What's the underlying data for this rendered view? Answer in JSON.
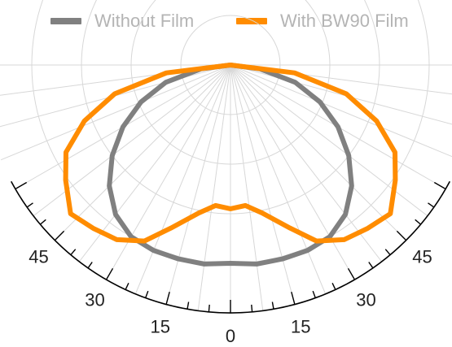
{
  "chart_data": {
    "type": "line",
    "subtype": "polar-light-distribution",
    "title": "",
    "angle_unit": "degrees",
    "angular_range": [
      -60,
      60
    ],
    "radial_range": [
      0,
      1
    ],
    "grid": true,
    "legend": {
      "placement": "top",
      "entries": [
        {
          "name": "Without Film",
          "color": "#808080"
        },
        {
          "name": "With BW90 Film",
          "color": "#ff8c00"
        }
      ]
    },
    "tick_labels": [
      {
        "angle": -45,
        "text": "45"
      },
      {
        "angle": -30,
        "text": "30"
      },
      {
        "angle": -15,
        "text": "15"
      },
      {
        "angle": 0,
        "text": "0"
      },
      {
        "angle": 15,
        "text": "15"
      },
      {
        "angle": 30,
        "text": "30"
      },
      {
        "angle": 45,
        "text": "45"
      }
    ],
    "series": [
      {
        "name": "Without Film",
        "color": "#808080",
        "points": [
          {
            "angle": 0,
            "r": 0.8
          },
          {
            "angle": 7.5,
            "r": 0.81
          },
          {
            "angle": 15,
            "r": 0.81
          },
          {
            "angle": 22.5,
            "r": 0.81
          },
          {
            "angle": 30,
            "r": 0.8
          },
          {
            "angle": 37.5,
            "r": 0.76
          },
          {
            "angle": 45,
            "r": 0.69
          },
          {
            "angle": 52.5,
            "r": 0.6
          },
          {
            "angle": 60,
            "r": 0.5
          },
          {
            "angle": 67.5,
            "r": 0.39
          },
          {
            "angle": 75,
            "r": 0.27
          },
          {
            "angle": 82.5,
            "r": 0.12
          },
          {
            "angle": 90,
            "r": 0.0
          },
          {
            "angle": -7.5,
            "r": 0.81
          },
          {
            "angle": -15,
            "r": 0.81
          },
          {
            "angle": -22.5,
            "r": 0.81
          },
          {
            "angle": -30,
            "r": 0.8
          },
          {
            "angle": -37.5,
            "r": 0.76
          },
          {
            "angle": -45,
            "r": 0.69
          },
          {
            "angle": -52.5,
            "r": 0.6
          },
          {
            "angle": -60,
            "r": 0.5
          },
          {
            "angle": -67.5,
            "r": 0.39
          },
          {
            "angle": -75,
            "r": 0.27
          },
          {
            "angle": -82.5,
            "r": 0.12
          },
          {
            "angle": -90,
            "r": 0.0
          }
        ]
      },
      {
        "name": "With BW90 Film",
        "color": "#ff8c00",
        "points": [
          {
            "angle": 0,
            "r": 0.58
          },
          {
            "angle": 6,
            "r": 0.57
          },
          {
            "angle": 12,
            "r": 0.61
          },
          {
            "angle": 20,
            "r": 0.7
          },
          {
            "angle": 26,
            "r": 0.79
          },
          {
            "angle": 33,
            "r": 0.84
          },
          {
            "angle": 40,
            "r": 0.86
          },
          {
            "angle": 47,
            "r": 0.88
          },
          {
            "angle": 55,
            "r": 0.81
          },
          {
            "angle": 62,
            "r": 0.75
          },
          {
            "angle": 69,
            "r": 0.63
          },
          {
            "angle": 76,
            "r": 0.48
          },
          {
            "angle": 83,
            "r": 0.26
          },
          {
            "angle": 90,
            "r": 0.0
          },
          {
            "angle": -6,
            "r": 0.57
          },
          {
            "angle": -12,
            "r": 0.61
          },
          {
            "angle": -20,
            "r": 0.7
          },
          {
            "angle": -26,
            "r": 0.79
          },
          {
            "angle": -33,
            "r": 0.84
          },
          {
            "angle": -40,
            "r": 0.86
          },
          {
            "angle": -47,
            "r": 0.88
          },
          {
            "angle": -55,
            "r": 0.81
          },
          {
            "angle": -62,
            "r": 0.75
          },
          {
            "angle": -69,
            "r": 0.63
          },
          {
            "angle": -76,
            "r": 0.48
          },
          {
            "angle": -83,
            "r": 0.26
          },
          {
            "angle": -90,
            "r": 0.0
          }
        ]
      }
    ]
  }
}
